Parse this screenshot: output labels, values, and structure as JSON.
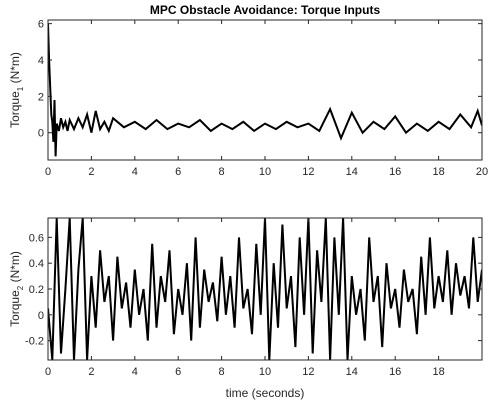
{
  "chart_data": [
    {
      "type": "line",
      "title": "MPC Obstacle Avoidance: Torque Inputs",
      "ylabel_main": "Torque",
      "ylabel_sub": "1",
      "ylabel_unit": " (N*m)",
      "xlabel": "",
      "xlim": [
        0,
        20
      ],
      "ylim": [
        -1.5,
        6.2
      ],
      "xticks": [
        "0",
        "2",
        "4",
        "6",
        "8",
        "10",
        "12",
        "14",
        "16",
        "18",
        "20"
      ],
      "yticks": [
        "6",
        "4",
        "2",
        "0"
      ],
      "grid": false,
      "series": [
        {
          "color": "#000000",
          "x": [
            0,
            0.05,
            0.1,
            0.15,
            0.2,
            0.25,
            0.3,
            0.35,
            0.4,
            0.5,
            0.6,
            0.7,
            0.8,
            0.9,
            1.0,
            1.2,
            1.4,
            1.6,
            1.8,
            2.0,
            2.2,
            2.4,
            2.6,
            2.8,
            3.0,
            3.5,
            4.0,
            4.5,
            5.0,
            5.5,
            6.0,
            6.5,
            7.0,
            7.5,
            8.0,
            8.5,
            9.0,
            9.5,
            10.0,
            10.5,
            11.0,
            11.5,
            12.0,
            12.5,
            13.0,
            13.5,
            14.0,
            14.5,
            15.0,
            15.5,
            16.0,
            16.5,
            17.0,
            17.5,
            18.0,
            18.5,
            19.0,
            19.5,
            19.8,
            20.0
          ],
          "y": [
            6.0,
            4.0,
            2.5,
            1.0,
            0.6,
            -0.5,
            1.8,
            -1.3,
            0.5,
            0.1,
            0.8,
            0.3,
            0.6,
            0.1,
            0.7,
            0.2,
            0.8,
            0.3,
            1.0,
            0.0,
            1.2,
            0.2,
            0.6,
            0.1,
            0.8,
            0.3,
            0.6,
            0.2,
            0.7,
            0.2,
            0.5,
            0.3,
            0.7,
            0.1,
            0.5,
            0.2,
            0.6,
            0.1,
            0.5,
            0.2,
            0.6,
            0.3,
            0.5,
            0.1,
            1.3,
            -0.3,
            1.1,
            0.0,
            0.6,
            0.2,
            0.9,
            0.0,
            0.5,
            0.1,
            0.6,
            0.2,
            1.0,
            0.3,
            1.2,
            0.4
          ]
        }
      ]
    },
    {
      "type": "line",
      "title": "",
      "ylabel_main": "Torque",
      "ylabel_sub": "2",
      "ylabel_unit": " (N*m)",
      "xlabel": "time (seconds)",
      "xlim": [
        0,
        20
      ],
      "ylim": [
        -0.35,
        0.75
      ],
      "xticks": [
        "0",
        "2",
        "4",
        "6",
        "8",
        "10",
        "12",
        "14",
        "16",
        "18"
      ],
      "yticks": [
        "0.6",
        "0.4",
        "0.2",
        "0",
        "-0.2"
      ],
      "grid": false,
      "series": [
        {
          "color": "#000000",
          "x": [
            0,
            0.2,
            0.4,
            0.6,
            0.8,
            1.0,
            1.2,
            1.4,
            1.6,
            1.8,
            2.0,
            2.2,
            2.4,
            2.6,
            2.8,
            3.0,
            3.2,
            3.4,
            3.6,
            3.8,
            4.0,
            4.2,
            4.4,
            4.6,
            4.8,
            5.0,
            5.2,
            5.4,
            5.6,
            5.8,
            6.0,
            6.2,
            6.4,
            6.6,
            6.8,
            7.0,
            7.2,
            7.4,
            7.6,
            7.8,
            8.0,
            8.2,
            8.4,
            8.6,
            8.8,
            9.0,
            9.2,
            9.4,
            9.6,
            9.8,
            10.0,
            10.2,
            10.4,
            10.6,
            10.8,
            11.0,
            11.2,
            11.4,
            11.6,
            11.8,
            12.0,
            12.2,
            12.4,
            12.6,
            12.8,
            13.0,
            13.2,
            13.4,
            13.6,
            13.8,
            14.0,
            14.2,
            14.4,
            14.6,
            14.8,
            15.0,
            15.2,
            15.4,
            15.6,
            15.8,
            16.0,
            16.2,
            16.4,
            16.6,
            16.8,
            17.0,
            17.2,
            17.4,
            17.6,
            17.8,
            18.0,
            18.2,
            18.4,
            18.6,
            18.8,
            19.0,
            19.2,
            19.4,
            19.6,
            19.8,
            20.0
          ],
          "y": [
            0.05,
            -0.35,
            0.75,
            -0.3,
            0.2,
            0.75,
            -0.35,
            0.35,
            0.75,
            -0.35,
            0.3,
            -0.1,
            0.5,
            0.1,
            0.3,
            -0.2,
            0.45,
            0.05,
            0.25,
            -0.1,
            0.35,
            0.0,
            0.2,
            -0.2,
            0.55,
            -0.1,
            0.3,
            0.1,
            0.5,
            -0.15,
            0.2,
            0.0,
            0.4,
            -0.2,
            0.6,
            -0.1,
            0.35,
            0.1,
            0.25,
            -0.05,
            0.45,
            0.0,
            0.3,
            -0.1,
            0.6,
            0.05,
            0.2,
            -0.15,
            0.55,
            0.0,
            0.75,
            -0.35,
            0.4,
            -0.1,
            0.7,
            0.05,
            0.3,
            -0.25,
            0.6,
            0.0,
            0.75,
            -0.3,
            0.5,
            0.1,
            0.75,
            -0.35,
            0.6,
            0.0,
            0.75,
            -0.35,
            0.3,
            0.0,
            0.2,
            -0.2,
            0.6,
            0.1,
            0.3,
            -0.25,
            0.4,
            0.05,
            0.2,
            -0.1,
            0.35,
            0.1,
            0.2,
            -0.15,
            0.45,
            0.0,
            0.6,
            0.05,
            0.3,
            0.1,
            0.5,
            0.0,
            0.4,
            0.15,
            0.3,
            0.05,
            0.6,
            0.1,
            0.35
          ]
        }
      ]
    }
  ]
}
